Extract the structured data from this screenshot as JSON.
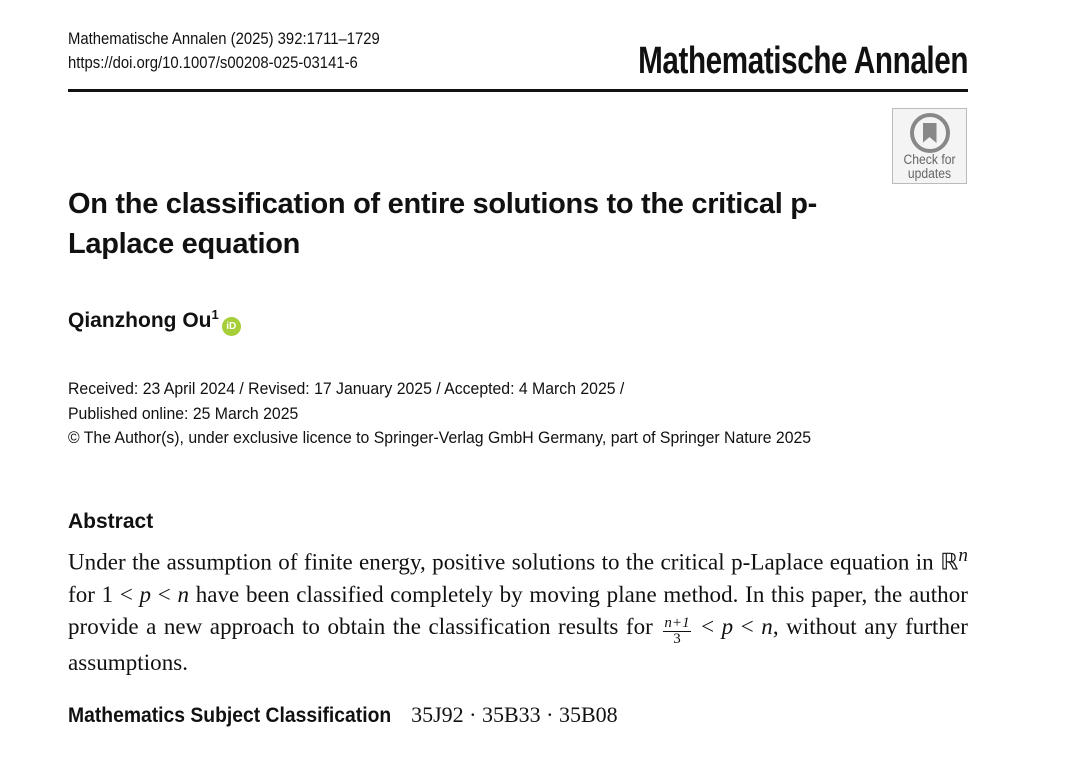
{
  "header": {
    "citation": "Mathematische Annalen (2025) 392:1711–1729",
    "doi": "https://doi.org/10.1007/s00208-025-03141-6",
    "journal": "Mathematische Annalen"
  },
  "badge": {
    "line1": "Check for",
    "line2": "updates",
    "icon": "crossmark-bookmark-icon"
  },
  "title": "On the classification of entire solutions to the critical p-Laplace equation",
  "author": {
    "name": "Qianzhong Ou",
    "affiliation": "1",
    "orcid_icon": "orcid-icon",
    "orcid_text": "iD",
    "orcid_color": "#a6ce39"
  },
  "dates": {
    "line1": "Received: 23 April 2024 / Revised: 17 January 2025 / Accepted: 4 March 2025 /",
    "line2": "Published online: 25 March 2025",
    "line3": "© The Author(s), under exclusive licence to Springer-Verlag GmbH Germany, part of Springer Nature  2025"
  },
  "abstract": {
    "heading": "Abstract",
    "t1": "Under the assumption of finite energy, positive solutions to the critical p-Laplace equation in ",
    "R": "ℝ",
    "Rexp": "n",
    "t2": " for 1 < ",
    "p1": "p",
    "t3": " < ",
    "n1": "n",
    "t4": " have been classified completely by moving plane method. In this paper, the author provide a new approach to obtain the classification results for ",
    "frac_num": "n+1",
    "frac_den": "3",
    "t5": " < ",
    "p2": "p",
    "t6": " < ",
    "n2": "n",
    "t7": ", without any further assumptions."
  },
  "msc": {
    "label": "Mathematics Subject Classification",
    "codes": "35J92 · 35B33 · 35B08"
  }
}
